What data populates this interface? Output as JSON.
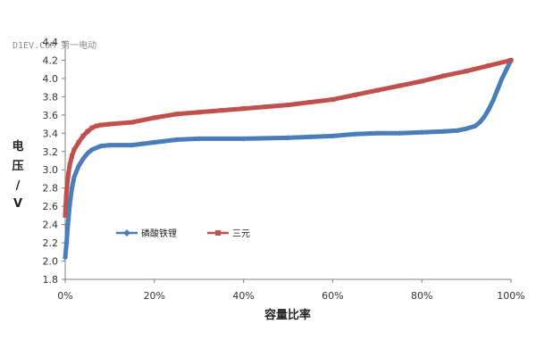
{
  "watermark": "D1EV.COM 第一电动",
  "chart_data": {
    "type": "line",
    "title": "",
    "xlabel": "容量比率",
    "ylabel": "电压 / V",
    "ylabel_chars": [
      "电",
      "压",
      "/",
      "V"
    ],
    "xlim": [
      0,
      100
    ],
    "ylim": [
      1.8,
      4.4
    ],
    "x_ticks": [
      0,
      20,
      40,
      60,
      80,
      100
    ],
    "x_tick_labels": [
      "0%",
      "20%",
      "40%",
      "60%",
      "80%",
      "100%"
    ],
    "y_ticks": [
      1.8,
      2.0,
      2.2,
      2.4,
      2.6,
      2.8,
      3.0,
      3.2,
      3.4,
      3.6,
      3.8,
      4.0,
      4.2,
      4.4
    ],
    "y_tick_labels": [
      "1.8",
      "2.0",
      "2.2",
      "2.4",
      "2.6",
      "2.8",
      "3.0",
      "3.2",
      "3.4",
      "3.6",
      "3.8",
      "4.0",
      "4.2",
      "4.4"
    ],
    "grid": false,
    "legend_position": "middle-left",
    "series": [
      {
        "name": "磷酸铁锂",
        "color": "#4a7ebb",
        "marker": "diamond",
        "points": [
          [
            0,
            2.04
          ],
          [
            0.3,
            2.2
          ],
          [
            0.6,
            2.4
          ],
          [
            1,
            2.62
          ],
          [
            1.5,
            2.8
          ],
          [
            2,
            2.92
          ],
          [
            3,
            3.04
          ],
          [
            4,
            3.12
          ],
          [
            5,
            3.18
          ],
          [
            6,
            3.22
          ],
          [
            8,
            3.26
          ],
          [
            10,
            3.27
          ],
          [
            15,
            3.27
          ],
          [
            20,
            3.3
          ],
          [
            25,
            3.33
          ],
          [
            30,
            3.34
          ],
          [
            40,
            3.34
          ],
          [
            50,
            3.35
          ],
          [
            55,
            3.36
          ],
          [
            60,
            3.37
          ],
          [
            65,
            3.39
          ],
          [
            70,
            3.4
          ],
          [
            75,
            3.4
          ],
          [
            80,
            3.41
          ],
          [
            85,
            3.42
          ],
          [
            88,
            3.43
          ],
          [
            90,
            3.45
          ],
          [
            92,
            3.48
          ],
          [
            93,
            3.52
          ],
          [
            94,
            3.58
          ],
          [
            95,
            3.66
          ],
          [
            96,
            3.76
          ],
          [
            97,
            3.88
          ],
          [
            98,
            4.0
          ],
          [
            99,
            4.1
          ],
          [
            100,
            4.2
          ]
        ]
      },
      {
        "name": "三元",
        "color": "#c0504d",
        "marker": "square",
        "points": [
          [
            0,
            2.5
          ],
          [
            0.2,
            2.7
          ],
          [
            0.4,
            2.82
          ],
          [
            0.7,
            2.95
          ],
          [
            1,
            3.05
          ],
          [
            1.5,
            3.15
          ],
          [
            2,
            3.22
          ],
          [
            3,
            3.3
          ],
          [
            4,
            3.37
          ],
          [
            5,
            3.42
          ],
          [
            6,
            3.46
          ],
          [
            7,
            3.48
          ],
          [
            8,
            3.49
          ],
          [
            10,
            3.5
          ],
          [
            15,
            3.52
          ],
          [
            20,
            3.57
          ],
          [
            25,
            3.61
          ],
          [
            30,
            3.63
          ],
          [
            35,
            3.65
          ],
          [
            40,
            3.67
          ],
          [
            45,
            3.69
          ],
          [
            50,
            3.71
          ],
          [
            55,
            3.74
          ],
          [
            60,
            3.77
          ],
          [
            65,
            3.82
          ],
          [
            70,
            3.87
          ],
          [
            75,
            3.92
          ],
          [
            80,
            3.97
          ],
          [
            85,
            4.03
          ],
          [
            90,
            4.08
          ],
          [
            95,
            4.14
          ],
          [
            100,
            4.2
          ]
        ]
      }
    ]
  }
}
